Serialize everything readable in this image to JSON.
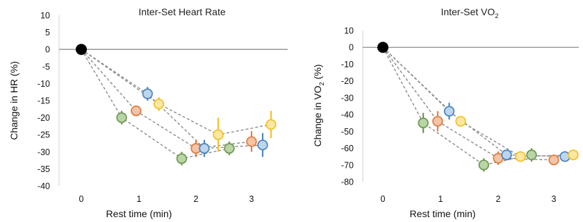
{
  "chart_data": [
    {
      "type": "scatter",
      "title": "Inter-Set Heart Rate",
      "xlabel": "Rest time (min)",
      "ylabel": "Change in HR (%)",
      "xlim": [
        -0.2,
        3.4
      ],
      "ylim": [
        -40,
        10
      ],
      "x_ticks": [
        0,
        1,
        2,
        3
      ],
      "y_ticks": [
        10,
        5,
        0,
        -5,
        -10,
        -15,
        -20,
        -25,
        -30,
        -35,
        -40
      ],
      "baseline_y": 0,
      "origin_point": {
        "x": 0,
        "y": 0
      },
      "grid": false,
      "series": [
        {
          "color": "green",
          "fill": "#b9d5a7",
          "stroke": "#6f9a52",
          "points": [
            {
              "x": 0.7,
              "y": -20,
              "err": 2
            },
            {
              "x": 1.75,
              "y": -32,
              "err": 2
            },
            {
              "x": 2.6,
              "y": -29,
              "err": 2
            }
          ]
        },
        {
          "color": "orange",
          "fill": "#f5c3a5",
          "stroke": "#de7f45",
          "points": [
            {
              "x": 0.95,
              "y": -18,
              "err": 1
            },
            {
              "x": 2.0,
              "y": -29,
              "err": 2.5
            },
            {
              "x": 3.0,
              "y": -27,
              "err": 3
            }
          ]
        },
        {
          "color": "blue",
          "fill": "#bcd6ee",
          "stroke": "#4f86c0",
          "points": [
            {
              "x": 1.15,
              "y": -13,
              "err": 2
            },
            {
              "x": 2.15,
              "y": -29,
              "err": 2.5
            },
            {
              "x": 3.2,
              "y": -28,
              "err": 3.5
            }
          ]
        },
        {
          "color": "yellow",
          "fill": "#fde7a1",
          "stroke": "#f3c22b",
          "points": [
            {
              "x": 1.35,
              "y": -16,
              "err": 2
            },
            {
              "x": 2.4,
              "y": -25,
              "err": 5
            },
            {
              "x": 3.35,
              "y": -22,
              "err": 4
            }
          ]
        }
      ]
    },
    {
      "type": "scatter",
      "title_main": "Inter-Set VO",
      "title_sub": "2",
      "xlabel": "Rest time (min)",
      "ylabel_pre": "Change in VO",
      "ylabel_sub": "2",
      "ylabel_post": " (%)",
      "xlim": [
        -0.2,
        3.4
      ],
      "ylim": [
        -80,
        10
      ],
      "x_ticks": [
        0,
        1,
        2,
        3
      ],
      "y_ticks": [
        10,
        0,
        -10,
        -20,
        -30,
        -40,
        -50,
        -60,
        -70,
        -80
      ],
      "baseline_y": 0,
      "origin_point": {
        "x": 0,
        "y": 0
      },
      "grid": false,
      "series": [
        {
          "color": "green",
          "fill": "#b9d5a7",
          "stroke": "#6f9a52",
          "points": [
            {
              "x": 0.7,
              "y": -45,
              "err": 6
            },
            {
              "x": 1.75,
              "y": -70,
              "err": 4
            },
            {
              "x": 2.6,
              "y": -64,
              "err": 4
            }
          ]
        },
        {
          "color": "orange",
          "fill": "#f5c3a5",
          "stroke": "#de7f45",
          "points": [
            {
              "x": 0.95,
              "y": -44,
              "err": 6
            },
            {
              "x": 2.0,
              "y": -66,
              "err": 4
            },
            {
              "x": 3.0,
              "y": -67,
              "err": 3
            }
          ]
        },
        {
          "color": "blue",
          "fill": "#bcd6ee",
          "stroke": "#4f86c0",
          "points": [
            {
              "x": 1.15,
              "y": -38,
              "err": 5
            },
            {
              "x": 2.15,
              "y": -64,
              "err": 3
            },
            {
              "x": 3.2,
              "y": -65,
              "err": 2
            }
          ]
        },
        {
          "color": "yellow",
          "fill": "#fde7a1",
          "stroke": "#f3c22b",
          "points": [
            {
              "x": 1.35,
              "y": -44,
              "err": 2
            },
            {
              "x": 2.4,
              "y": -65,
              "err": 3
            },
            {
              "x": 3.35,
              "y": -64,
              "err": 2
            }
          ]
        }
      ]
    }
  ]
}
